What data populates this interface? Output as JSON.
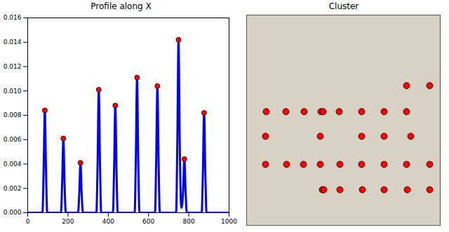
{
  "chart_data": [
    {
      "type": "line",
      "title": "Profile along X",
      "x": [
        0,
        73,
        79,
        85,
        91,
        97,
        165,
        171,
        177,
        183,
        189,
        250,
        256,
        262,
        268,
        274,
        341,
        347,
        353,
        359,
        365,
        423,
        429,
        435,
        441,
        447,
        531,
        537,
        543,
        549,
        555,
        632,
        638,
        644,
        650,
        656,
        737,
        743,
        749,
        755,
        763,
        772,
        778,
        784,
        790,
        864,
        870,
        876,
        882,
        888,
        1000
      ],
      "values": [
        0,
        0,
        0.0034,
        0.0084,
        0.0034,
        0,
        0,
        0.0024,
        0.0061,
        0.0024,
        0,
        0,
        0.0016,
        0.0041,
        0.0016,
        0,
        0,
        0.004,
        0.0101,
        0.004,
        0,
        0,
        0.0035,
        0.0088,
        0.0035,
        0,
        0,
        0.0044,
        0.0111,
        0.0044,
        0,
        0,
        0.0042,
        0.0104,
        0.0042,
        0,
        0,
        0.0057,
        0.0142,
        0.0057,
        0.0004,
        0.0018,
        0.0044,
        0.0018,
        0,
        0,
        0.0033,
        0.0082,
        0.0033,
        0,
        0
      ],
      "color": "#0000ff",
      "peaks": {
        "x": [
          85,
          177,
          262,
          353,
          435,
          543,
          644,
          749,
          778,
          876
        ],
        "values": [
          0.0084,
          0.0061,
          0.0041,
          0.0101,
          0.0088,
          0.0111,
          0.0104,
          0.0142,
          0.0044,
          0.0082
        ],
        "color": "#ff0000",
        "marker": "o"
      },
      "xlim": [
        0,
        1000
      ],
      "xticks": [
        0,
        200,
        400,
        600,
        800,
        1000
      ],
      "ylim": [
        0,
        0.016
      ],
      "yticks": [
        {
          "value": 0,
          "label": "0.000"
        },
        {
          "value": 0.002,
          "label": "0.002"
        },
        {
          "value": 0.004,
          "label": "0.004"
        },
        {
          "value": 0.006,
          "label": "0.006"
        },
        {
          "value": 0.008,
          "label": "0.008"
        },
        {
          "value": 0.01,
          "label": "0.010"
        },
        {
          "value": 0.012,
          "label": "0.012"
        },
        {
          "value": 0.014,
          "label": "0.014"
        },
        {
          "value": 0.016,
          "label": "0.016"
        }
      ]
    },
    {
      "type": "scatter",
      "title": "Cluster",
      "x": [
        228,
        261,
        28,
        56,
        82,
        106,
        109,
        132,
        164,
        196,
        228,
        27,
        105,
        164,
        196,
        234,
        27,
        57,
        81,
        105,
        133,
        164,
        196,
        228,
        261,
        108,
        110,
        133,
        165,
        196,
        229,
        261
      ],
      "values": [
        103,
        103,
        141,
        141,
        141,
        141,
        141,
        141,
        141,
        141,
        141,
        177,
        177,
        177,
        177,
        177,
        218,
        218,
        218,
        218,
        218,
        218,
        218,
        218,
        218,
        255,
        255,
        255,
        255,
        255,
        255,
        255
      ],
      "color": "#ff0000",
      "marker": "o",
      "xlim": [
        0,
        276
      ],
      "ylim": [
        307,
        0
      ],
      "tick_labels": false
    }
  ]
}
